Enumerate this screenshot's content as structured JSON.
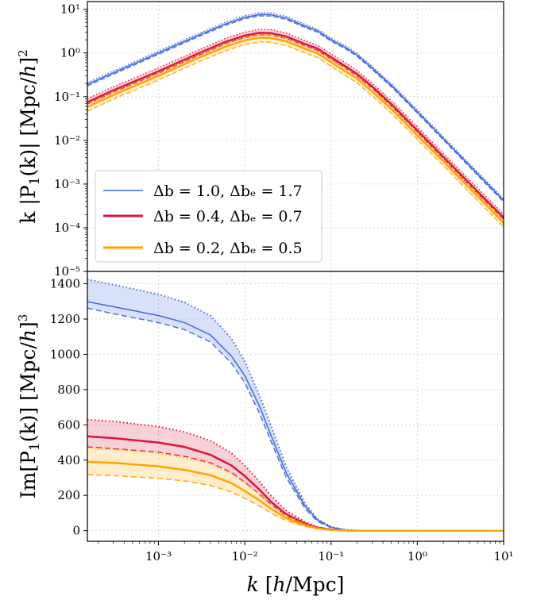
{
  "chart_data": [
    {
      "type": "line",
      "panel": "top",
      "xscale": "log",
      "yscale": "log",
      "xlim": [
        0.00015,
        10
      ],
      "ylim": [
        1e-05,
        15
      ],
      "grid": true,
      "legend_placement": "lower-left",
      "ylabel": "k |P₁(k)| [Mpc/h]²",
      "yticks": [
        {
          "v": 1e-05,
          "label": "10⁻⁵"
        },
        {
          "v": 0.0001,
          "label": "10⁻⁴"
        },
        {
          "v": 0.001,
          "label": "10⁻³"
        },
        {
          "v": 0.01,
          "label": "10⁻²"
        },
        {
          "v": 0.1,
          "label": "10⁻¹"
        },
        {
          "v": 1,
          "label": "10⁰"
        },
        {
          "v": 10,
          "label": "10¹"
        }
      ],
      "series": [
        {
          "name": "Δb = 1.0, Δbₑ = 1.7",
          "color": "#4169E1",
          "width": 1.5,
          "x": [
            0.00015,
            0.0003,
            0.001,
            0.003,
            0.006,
            0.01,
            0.015,
            0.02,
            0.03,
            0.05,
            0.07,
            0.1,
            0.15,
            0.2,
            0.3,
            0.5,
            1,
            2,
            5,
            10
          ],
          "y": [
            0.19,
            0.35,
            1.0,
            2.6,
            4.6,
            6.5,
            7.6,
            7.5,
            6.3,
            4.1,
            3.2,
            2.0,
            1.3,
            0.9,
            0.45,
            0.18,
            0.045,
            0.011,
            0.0017,
            0.00042
          ],
          "band": {
            "upper_scale": 1.1,
            "lower_scale": 0.93
          }
        },
        {
          "name": "Δb = 0.4, Δbₑ = 0.7",
          "color": "#DC143C",
          "width": 2.5,
          "x": [
            0.00015,
            0.0003,
            0.001,
            0.003,
            0.006,
            0.01,
            0.015,
            0.02,
            0.03,
            0.05,
            0.07,
            0.1,
            0.15,
            0.2,
            0.3,
            0.5,
            1,
            2,
            5,
            10
          ],
          "y": [
            0.075,
            0.14,
            0.38,
            1.0,
            1.8,
            2.5,
            2.9,
            2.85,
            2.4,
            1.6,
            1.25,
            0.8,
            0.48,
            0.33,
            0.17,
            0.067,
            0.017,
            0.0042,
            0.00067,
            0.00017
          ],
          "band": {
            "upper_scale": 1.2,
            "lower_scale": 0.9
          }
        },
        {
          "name": "Δb = 0.2, Δbₑ = 0.5",
          "color": "#FFA500",
          "width": 2.5,
          "x": [
            0.00015,
            0.0003,
            0.001,
            0.003,
            0.006,
            0.01,
            0.015,
            0.02,
            0.03,
            0.05,
            0.07,
            0.1,
            0.15,
            0.2,
            0.3,
            0.5,
            1,
            2,
            5,
            10
          ],
          "y": [
            0.058,
            0.11,
            0.3,
            0.8,
            1.4,
            1.95,
            2.25,
            2.2,
            1.85,
            1.25,
            0.98,
            0.62,
            0.37,
            0.26,
            0.13,
            0.052,
            0.013,
            0.0033,
            0.00052,
            0.00013
          ],
          "band": {
            "upper_scale": 1.18,
            "lower_scale": 0.8
          }
        }
      ]
    },
    {
      "type": "line",
      "panel": "bottom",
      "xscale": "log",
      "yscale": "linear",
      "xlim": [
        0.00015,
        10
      ],
      "ylim": [
        -60,
        1470
      ],
      "grid": true,
      "xlabel": "k [h/Mpc]",
      "ylabel": "Im[P₁(k)] [Mpc/h]³",
      "xticks": [
        {
          "v": 0.001,
          "label": "10⁻³"
        },
        {
          "v": 0.01,
          "label": "10⁻²"
        },
        {
          "v": 0.1,
          "label": "10⁻¹"
        },
        {
          "v": 1,
          "label": "10⁰"
        },
        {
          "v": 10,
          "label": "10¹"
        }
      ],
      "yticks": [
        {
          "v": 0,
          "label": "0"
        },
        {
          "v": 200,
          "label": "200"
        },
        {
          "v": 400,
          "label": "400"
        },
        {
          "v": 600,
          "label": "600"
        },
        {
          "v": 800,
          "label": "800"
        },
        {
          "v": 1000,
          "label": "1000"
        },
        {
          "v": 1200,
          "label": "1200"
        },
        {
          "v": 1400,
          "label": "1400"
        }
      ],
      "series": [
        {
          "name": "Δb = 1.0, Δbₑ = 1.7",
          "color": "#4169E1",
          "width": 1.5,
          "x": [
            0.00015,
            0.0003,
            0.001,
            0.002,
            0.004,
            0.007,
            0.01,
            0.015,
            0.02,
            0.03,
            0.05,
            0.07,
            0.1,
            0.15,
            0.2,
            0.5,
            1,
            10
          ],
          "mid": [
            1298,
            1270,
            1220,
            1180,
            1110,
            990,
            880,
            700,
            545,
            330,
            140,
            60,
            20,
            4,
            1,
            0,
            0,
            0
          ],
          "upper": [
            1425,
            1395,
            1340,
            1295,
            1220,
            1090,
            960,
            760,
            600,
            365,
            155,
            65,
            22,
            5,
            1,
            0,
            0,
            0
          ],
          "lower": [
            1262,
            1230,
            1180,
            1140,
            1070,
            950,
            840,
            660,
            510,
            305,
            125,
            52,
            17,
            3,
            1,
            0,
            0,
            0
          ]
        },
        {
          "name": "Δb = 0.4, Δbₑ = 0.7",
          "color": "#DC143C",
          "width": 2.5,
          "x": [
            0.00015,
            0.0003,
            0.001,
            0.002,
            0.004,
            0.007,
            0.01,
            0.015,
            0.02,
            0.03,
            0.05,
            0.07,
            0.1,
            0.15,
            0.2,
            0.5,
            1,
            10
          ],
          "mid": [
            535,
            525,
            500,
            475,
            430,
            370,
            310,
            230,
            165,
            95,
            40,
            17,
            6,
            1,
            0,
            0,
            0,
            0
          ],
          "upper": [
            630,
            620,
            590,
            560,
            510,
            440,
            370,
            275,
            200,
            115,
            50,
            21,
            7,
            2,
            0,
            0,
            0,
            0
          ],
          "lower": [
            475,
            465,
            445,
            422,
            385,
            330,
            275,
            205,
            150,
            85,
            35,
            15,
            5,
            1,
            0,
            0,
            0,
            0
          ]
        },
        {
          "name": "Δb = 0.2, Δbₑ = 0.5",
          "color": "#FFA500",
          "width": 2.5,
          "x": [
            0.00015,
            0.0003,
            0.001,
            0.002,
            0.004,
            0.007,
            0.01,
            0.015,
            0.02,
            0.03,
            0.05,
            0.07,
            0.1,
            0.15,
            0.2,
            0.5,
            1,
            10
          ],
          "mid": [
            390,
            385,
            365,
            345,
            315,
            270,
            225,
            170,
            125,
            72,
            30,
            13,
            4,
            1,
            0,
            0,
            0,
            0
          ],
          "upper": [
            470,
            462,
            440,
            415,
            380,
            325,
            272,
            205,
            150,
            87,
            36,
            15,
            5,
            1,
            0,
            0,
            0,
            0
          ],
          "lower": [
            318,
            312,
            297,
            282,
            257,
            220,
            184,
            138,
            101,
            58,
            24,
            10,
            3,
            1,
            0,
            0,
            0,
            0
          ]
        }
      ]
    }
  ]
}
